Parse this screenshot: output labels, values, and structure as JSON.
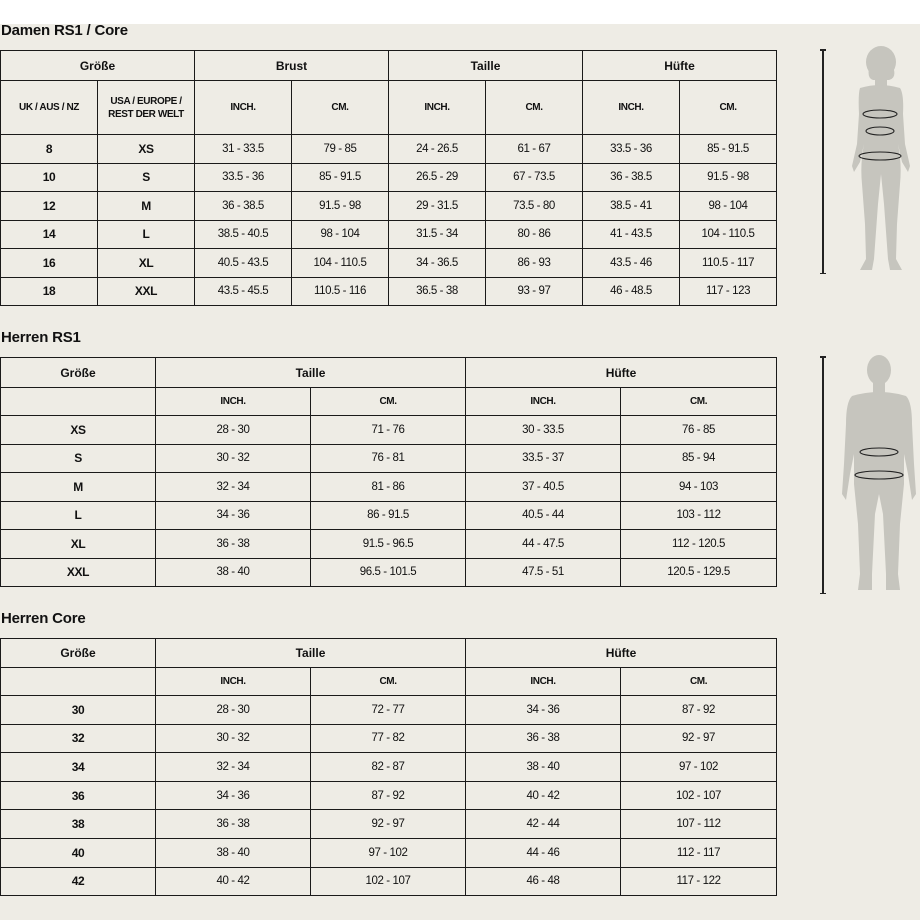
{
  "damen": {
    "title": "Damen RS1 / Core",
    "groups": [
      "Größe",
      "Brust",
      "Taille",
      "Hüfte"
    ],
    "subheaders": [
      "UK / AUS / NZ",
      "USA / EUROPE / REST DER WELT",
      "INCH.",
      "CM.",
      "INCH.",
      "CM.",
      "INCH.",
      "CM."
    ],
    "rows": [
      [
        "8",
        "XS",
        "31 - 33.5",
        "79 - 85",
        "24 - 26.5",
        "61 - 67",
        "33.5 - 36",
        "85 - 91.5"
      ],
      [
        "10",
        "S",
        "33.5 - 36",
        "85 - 91.5",
        "26.5 - 29",
        "67 - 73.5",
        "36 - 38.5",
        "91.5 - 98"
      ],
      [
        "12",
        "M",
        "36 - 38.5",
        "91.5 - 98",
        "29 - 31.5",
        "73.5 - 80",
        "38.5 - 41",
        "98 - 104"
      ],
      [
        "14",
        "L",
        "38.5 - 40.5",
        "98 - 104",
        "31.5 - 34",
        "80 - 86",
        "41 - 43.5",
        "104 - 110.5"
      ],
      [
        "16",
        "XL",
        "40.5 - 43.5",
        "104 - 110.5",
        "34 - 36.5",
        "86 - 93",
        "43.5 - 46",
        "110.5 - 117"
      ],
      [
        "18",
        "XXL",
        "43.5 - 45.5",
        "110.5 - 116",
        "36.5 - 38",
        "93 - 97",
        "46 - 48.5",
        "117 - 123"
      ]
    ]
  },
  "herren_rs1": {
    "title": "Herren RS1",
    "groups": [
      "Größe",
      "Taille",
      "Hüfte"
    ],
    "subheaders": [
      "",
      "INCH.",
      "CM.",
      "INCH.",
      "CM."
    ],
    "rows": [
      [
        "XS",
        "28 - 30",
        "71 - 76",
        "30 - 33.5",
        "76 - 85"
      ],
      [
        "S",
        "30 - 32",
        "76 - 81",
        "33.5 - 37",
        "85 - 94"
      ],
      [
        "M",
        "32 - 34",
        "81 - 86",
        "37 - 40.5",
        "94 - 103"
      ],
      [
        "L",
        "34 - 36",
        "86 - 91.5",
        "40.5 - 44",
        "103 - 112"
      ],
      [
        "XL",
        "36 - 38",
        "91.5 - 96.5",
        "44 - 47.5",
        "112 - 120.5"
      ],
      [
        "XXL",
        "38 - 40",
        "96.5 - 101.5",
        "47.5 - 51",
        "120.5 - 129.5"
      ]
    ]
  },
  "herren_core": {
    "title": "Herren Core",
    "groups": [
      "Größe",
      "Taille",
      "Hüfte"
    ],
    "subheaders": [
      "",
      "INCH.",
      "CM.",
      "INCH.",
      "CM."
    ],
    "rows": [
      [
        "30",
        "28 - 30",
        "72 - 77",
        "34 - 36",
        "87 - 92"
      ],
      [
        "32",
        "30 - 32",
        "77 - 82",
        "36 - 38",
        "92 - 97"
      ],
      [
        "34",
        "32 - 34",
        "82 - 87",
        "38 - 40",
        "97 - 102"
      ],
      [
        "36",
        "34 - 36",
        "87 - 92",
        "40 - 42",
        "102 - 107"
      ],
      [
        "38",
        "36 - 38",
        "92 - 97",
        "42 - 44",
        "107 - 112"
      ],
      [
        "40",
        "38 - 40",
        "97 - 102",
        "44 - 46",
        "112 - 117"
      ],
      [
        "42",
        "40 - 42",
        "102 - 107",
        "46 - 48",
        "117 - 122"
      ]
    ]
  },
  "colors": {
    "background": "#eeece5",
    "figure": "#c6c5be",
    "border": "#1a1a1a"
  }
}
